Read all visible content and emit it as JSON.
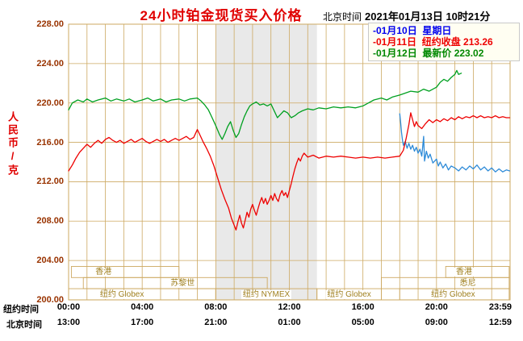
{
  "header": {
    "title": "24小时铂金现货买入价格",
    "clock_label": "北京时间",
    "clock_value": "2021年01月13日 10时21分"
  },
  "legend": {
    "items": [
      {
        "date": "01月10日",
        "label": "星期日",
        "value": "",
        "color": "#0000ee"
      },
      {
        "date": "01月11日",
        "label": "纽约收盘",
        "value": "213.26",
        "color": "#ee0000"
      },
      {
        "date": "01月12日",
        "label": "最新价",
        "value": "223.02",
        "color": "#008800"
      }
    ]
  },
  "axes": {
    "y_unit": "人民币/克",
    "ny_time_label": "纽约时间",
    "bj_time_label": "北京时间",
    "x_ticks": [
      {
        "t": 0,
        "ny": "00:00",
        "bj": "13:00"
      },
      {
        "t": 4,
        "ny": "04:00",
        "bj": "17:00"
      },
      {
        "t": 8,
        "ny": "08:00",
        "bj": "21:00"
      },
      {
        "t": 12,
        "ny": "12:00",
        "bj": "01:00"
      },
      {
        "t": 16,
        "ny": "16:00",
        "bj": "05:00"
      },
      {
        "t": 20,
        "ny": "20:00",
        "bj": "09:00"
      },
      {
        "t": 23.983,
        "ny": "23:59",
        "bj": "12:59"
      }
    ]
  },
  "chart_data": {
    "type": "line",
    "title": "24小时铂金现货买入价格",
    "ylabel": "人民币/克",
    "x_unit": "hours, New York time 00:00-23:59",
    "x_range": [
      0,
      24
    ],
    "ylim": [
      200,
      228
    ],
    "ytick_step": 4,
    "grid": true,
    "grid_color": "#cda962",
    "shaded_region": {
      "start": 8,
      "end": 13.5,
      "color": "#e9e9e9"
    },
    "sessions": [
      {
        "label": "香港",
        "row": 0,
        "start": 0.15,
        "end": 6,
        "label_at": 1.9
      },
      {
        "label": "香港",
        "row": 0,
        "start": 20.5,
        "end": 23.95,
        "label_at": 21.5
      },
      {
        "label": "苏黎世",
        "row": 1,
        "start": 0.8,
        "end": 10.8,
        "label_at": 6.2
      },
      {
        "label": "悉尼",
        "row": 1,
        "start": 17,
        "end": 23.95,
        "label_at": 21.7
      },
      {
        "label": "纽约 Globex",
        "row": 2,
        "start": 0,
        "end": 8,
        "label_at": 2.9
      },
      {
        "label": "纽约 NYMEX",
        "row": 2,
        "start": 8,
        "end": 13.5,
        "label_at": 10.75
      },
      {
        "label": "纽约 Globex",
        "row": 2,
        "start": 13.5,
        "end": 17,
        "label_at": 15.25
      },
      {
        "label": "纽约 Globex",
        "row": 2,
        "start": 18,
        "end": 23.95,
        "label_at": 20.9
      }
    ],
    "series": [
      {
        "name": "01月10日 星期日",
        "color": "#2e8bd8",
        "points": [
          [
            18,
            218.9
          ],
          [
            18.05,
            218.0
          ],
          [
            18.1,
            217.0
          ],
          [
            18.15,
            216.2
          ],
          [
            18.2,
            215.7
          ],
          [
            18.3,
            216.1
          ],
          [
            18.4,
            215.4
          ],
          [
            18.5,
            215.9
          ],
          [
            18.6,
            215.3
          ],
          [
            18.7,
            215.7
          ],
          [
            18.8,
            215.1
          ],
          [
            18.9,
            215.5
          ],
          [
            19,
            214.9
          ],
          [
            19.1,
            215.3
          ],
          [
            19.2,
            214.6
          ],
          [
            19.3,
            216.6
          ],
          [
            19.35,
            214.1
          ],
          [
            19.45,
            215.1
          ],
          [
            19.55,
            214.4
          ],
          [
            19.65,
            214.8
          ],
          [
            19.8,
            213.9
          ],
          [
            20,
            214.3
          ],
          [
            20.1,
            213.6
          ],
          [
            20.2,
            214.0
          ],
          [
            20.35,
            213.4
          ],
          [
            20.5,
            213.8
          ],
          [
            20.65,
            213.2
          ],
          [
            20.8,
            213.6
          ],
          [
            21,
            213.4
          ],
          [
            21.2,
            213.1
          ],
          [
            21.4,
            213.5
          ],
          [
            21.6,
            213.2
          ],
          [
            21.8,
            213.6
          ],
          [
            22,
            213.3
          ],
          [
            22.2,
            213.7
          ],
          [
            22.4,
            213.2
          ],
          [
            22.6,
            213.5
          ],
          [
            22.8,
            213.1
          ],
          [
            23,
            213.4
          ],
          [
            23.2,
            213.0
          ],
          [
            23.4,
            213.3
          ],
          [
            23.6,
            213.0
          ],
          [
            23.8,
            213.2
          ],
          [
            23.98,
            213.1
          ]
        ]
      },
      {
        "name": "01月11日 纽约收盘 213.26",
        "color": "#ee0000",
        "points": [
          [
            0,
            213.1
          ],
          [
            0.2,
            213.7
          ],
          [
            0.4,
            214.4
          ],
          [
            0.6,
            215.0
          ],
          [
            0.8,
            215.4
          ],
          [
            1,
            215.8
          ],
          [
            1.2,
            215.5
          ],
          [
            1.4,
            215.9
          ],
          [
            1.6,
            216.2
          ],
          [
            1.8,
            215.9
          ],
          [
            2,
            216.3
          ],
          [
            2.2,
            216.5
          ],
          [
            2.4,
            216.2
          ],
          [
            2.6,
            216.0
          ],
          [
            2.8,
            216.2
          ],
          [
            3,
            215.9
          ],
          [
            3.2,
            216.1
          ],
          [
            3.4,
            216.3
          ],
          [
            3.6,
            216.0
          ],
          [
            3.8,
            216.2
          ],
          [
            4,
            216.4
          ],
          [
            4.2,
            216.1
          ],
          [
            4.4,
            215.9
          ],
          [
            4.6,
            216.1
          ],
          [
            4.8,
            216.3
          ],
          [
            5,
            216.1
          ],
          [
            5.2,
            216.3
          ],
          [
            5.4,
            216.0
          ],
          [
            5.6,
            216.2
          ],
          [
            5.8,
            216.4
          ],
          [
            6,
            216.2
          ],
          [
            6.2,
            216.4
          ],
          [
            6.4,
            216.6
          ],
          [
            6.6,
            216.3
          ],
          [
            6.8,
            216.5
          ],
          [
            7,
            217.3
          ],
          [
            7.15,
            216.7
          ],
          [
            7.3,
            216.1
          ],
          [
            7.5,
            215.4
          ],
          [
            7.7,
            214.6
          ],
          [
            7.9,
            213.6
          ],
          [
            8.1,
            212.4
          ],
          [
            8.3,
            211.2
          ],
          [
            8.5,
            210.2
          ],
          [
            8.7,
            209.3
          ],
          [
            8.85,
            208.3
          ],
          [
            9,
            207.6
          ],
          [
            9.1,
            207.1
          ],
          [
            9.2,
            207.9
          ],
          [
            9.3,
            208.6
          ],
          [
            9.4,
            207.8
          ],
          [
            9.5,
            207.3
          ],
          [
            9.6,
            208.1
          ],
          [
            9.7,
            208.9
          ],
          [
            9.8,
            208.4
          ],
          [
            9.9,
            209.2
          ],
          [
            10,
            209.7
          ],
          [
            10.1,
            209.1
          ],
          [
            10.2,
            208.6
          ],
          [
            10.3,
            209.3
          ],
          [
            10.4,
            209.9
          ],
          [
            10.5,
            210.4
          ],
          [
            10.6,
            209.8
          ],
          [
            10.7,
            210.3
          ],
          [
            10.8,
            209.7
          ],
          [
            10.9,
            210.1
          ],
          [
            11,
            210.6
          ],
          [
            11.1,
            210.1
          ],
          [
            11.2,
            210.8
          ],
          [
            11.3,
            210.3
          ],
          [
            11.4,
            210.0
          ],
          [
            11.5,
            210.7
          ],
          [
            11.6,
            211.1
          ],
          [
            11.7,
            210.6
          ],
          [
            11.8,
            210.9
          ],
          [
            11.9,
            210.4
          ],
          [
            12,
            211.1
          ],
          [
            12.1,
            211.8
          ],
          [
            12.2,
            212.6
          ],
          [
            12.3,
            213.3
          ],
          [
            12.4,
            213.9
          ],
          [
            12.5,
            214.4
          ],
          [
            12.6,
            214.1
          ],
          [
            12.7,
            214.6
          ],
          [
            12.8,
            214.9
          ],
          [
            13,
            214.5
          ],
          [
            13.3,
            214.7
          ],
          [
            13.6,
            214.4
          ],
          [
            14,
            214.6
          ],
          [
            14.4,
            214.5
          ],
          [
            14.8,
            214.6
          ],
          [
            15.2,
            214.5
          ],
          [
            15.6,
            214.4
          ],
          [
            16,
            214.5
          ],
          [
            16.4,
            214.4
          ],
          [
            16.8,
            214.5
          ],
          [
            17.2,
            214.4
          ],
          [
            17.6,
            214.5
          ],
          [
            18,
            214.6
          ],
          [
            18.2,
            215.2
          ],
          [
            18.35,
            216.4
          ],
          [
            18.5,
            217.8
          ],
          [
            18.6,
            219.0
          ],
          [
            18.7,
            218.3
          ],
          [
            18.8,
            217.6
          ],
          [
            18.9,
            218.1
          ],
          [
            19,
            217.7
          ],
          [
            19.2,
            217.4
          ],
          [
            19.4,
            217.9
          ],
          [
            19.6,
            218.3
          ],
          [
            19.8,
            218.0
          ],
          [
            20,
            218.3
          ],
          [
            20.2,
            218.1
          ],
          [
            20.4,
            218.4
          ],
          [
            20.6,
            218.2
          ],
          [
            20.8,
            218.5
          ],
          [
            21,
            218.3
          ],
          [
            21.2,
            218.6
          ],
          [
            21.4,
            218.4
          ],
          [
            21.6,
            218.6
          ],
          [
            21.8,
            218.5
          ],
          [
            22,
            218.7
          ],
          [
            22.2,
            218.5
          ],
          [
            22.4,
            218.7
          ],
          [
            22.6,
            218.5
          ],
          [
            22.8,
            218.6
          ],
          [
            23,
            218.5
          ],
          [
            23.2,
            218.7
          ],
          [
            23.4,
            218.5
          ],
          [
            23.6,
            218.6
          ],
          [
            23.8,
            218.5
          ],
          [
            23.98,
            218.5
          ]
        ]
      },
      {
        "name": "01月12日 最新价 223.02",
        "color": "#00a020",
        "points": [
          [
            0,
            219.3
          ],
          [
            0.2,
            220.0
          ],
          [
            0.5,
            220.3
          ],
          [
            0.8,
            220.1
          ],
          [
            1,
            220.4
          ],
          [
            1.3,
            220.1
          ],
          [
            1.6,
            220.3
          ],
          [
            2,
            220.5
          ],
          [
            2.3,
            220.2
          ],
          [
            2.6,
            220.4
          ],
          [
            3,
            220.2
          ],
          [
            3.3,
            220.4
          ],
          [
            3.6,
            220.1
          ],
          [
            4,
            220.3
          ],
          [
            4.3,
            220.5
          ],
          [
            4.6,
            220.2
          ],
          [
            5,
            220.4
          ],
          [
            5.3,
            220.1
          ],
          [
            5.6,
            220.3
          ],
          [
            6,
            220.4
          ],
          [
            6.3,
            220.2
          ],
          [
            6.6,
            220.4
          ],
          [
            7,
            220.5
          ],
          [
            7.2,
            220.2
          ],
          [
            7.4,
            219.8
          ],
          [
            7.6,
            219.3
          ],
          [
            7.8,
            218.5
          ],
          [
            8,
            217.7
          ],
          [
            8.2,
            216.8
          ],
          [
            8.35,
            216.3
          ],
          [
            8.5,
            216.9
          ],
          [
            8.65,
            217.6
          ],
          [
            8.8,
            218.1
          ],
          [
            8.95,
            217.2
          ],
          [
            9.1,
            216.5
          ],
          [
            9.25,
            216.9
          ],
          [
            9.4,
            217.8
          ],
          [
            9.55,
            218.6
          ],
          [
            9.7,
            219.2
          ],
          [
            9.85,
            219.7
          ],
          [
            10,
            219.9
          ],
          [
            10.2,
            220.1
          ],
          [
            10.4,
            219.8
          ],
          [
            10.6,
            219.9
          ],
          [
            10.8,
            219.7
          ],
          [
            11,
            219.9
          ],
          [
            11.2,
            219.1
          ],
          [
            11.35,
            218.5
          ],
          [
            11.5,
            218.8
          ],
          [
            11.7,
            219.2
          ],
          [
            11.9,
            219.0
          ],
          [
            12.1,
            218.5
          ],
          [
            12.3,
            218.7
          ],
          [
            12.5,
            219.0
          ],
          [
            12.7,
            219.2
          ],
          [
            13,
            219.4
          ],
          [
            13.3,
            219.3
          ],
          [
            13.6,
            219.5
          ],
          [
            14,
            219.4
          ],
          [
            14.4,
            219.6
          ],
          [
            14.8,
            219.5
          ],
          [
            15.2,
            219.6
          ],
          [
            15.6,
            219.5
          ],
          [
            16,
            219.7
          ],
          [
            16.3,
            220.0
          ],
          [
            16.6,
            220.3
          ],
          [
            17,
            220.5
          ],
          [
            17.3,
            220.3
          ],
          [
            17.6,
            220.6
          ],
          [
            18,
            220.8
          ],
          [
            18.3,
            221.0
          ],
          [
            18.6,
            221.2
          ],
          [
            19,
            221.1
          ],
          [
            19.3,
            221.4
          ],
          [
            19.6,
            221.2
          ],
          [
            20,
            221.6
          ],
          [
            20.2,
            222.1
          ],
          [
            20.4,
            222.4
          ],
          [
            20.6,
            222.2
          ],
          [
            20.8,
            222.6
          ],
          [
            21,
            222.9
          ],
          [
            21.1,
            223.3
          ],
          [
            21.2,
            222.9
          ],
          [
            21.35,
            223.02
          ]
        ]
      }
    ]
  }
}
